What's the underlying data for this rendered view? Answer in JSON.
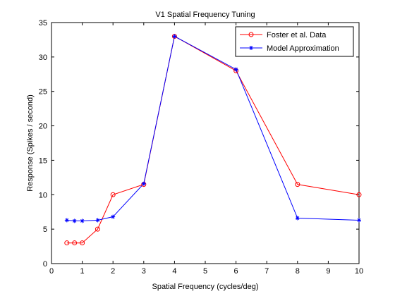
{
  "chart_data": {
    "type": "line",
    "title": "V1 Spatial Frequency Tuning",
    "xlabel": "Spatial Frequency (cycles/deg)",
    "ylabel": "Response (Spikes / second)",
    "xlim": [
      0,
      10
    ],
    "ylim": [
      0,
      35
    ],
    "xticks": [
      0,
      1,
      2,
      3,
      4,
      5,
      6,
      7,
      8,
      9,
      10
    ],
    "yticks": [
      0,
      5,
      10,
      15,
      20,
      25,
      30,
      35
    ],
    "grid": false,
    "legend_position": "top-right",
    "series": [
      {
        "name": "Foster et al. Data",
        "color": "#ff0000",
        "marker": "circle",
        "x": [
          0.5,
          0.75,
          1,
          1.5,
          2,
          3,
          4,
          6,
          8,
          10
        ],
        "y": [
          3,
          3,
          3,
          5,
          10,
          11.5,
          33,
          28,
          11.5,
          10
        ]
      },
      {
        "name": "Model Approximation",
        "color": "#0000ff",
        "marker": "asterisk",
        "x": [
          0.5,
          0.75,
          1,
          1.5,
          2,
          3,
          4,
          6,
          8,
          10
        ],
        "y": [
          6.3,
          6.2,
          6.2,
          6.3,
          6.8,
          11.6,
          33,
          28.2,
          6.6,
          6.3
        ]
      }
    ]
  }
}
